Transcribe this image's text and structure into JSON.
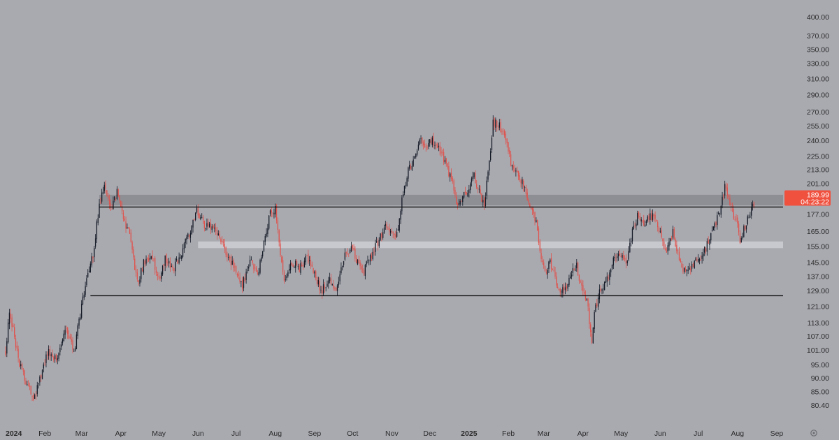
{
  "chart_data": {
    "type": "candlestick",
    "title": "",
    "xlabel": "",
    "ylabel": "",
    "y_scale": "log",
    "ylim": [
      76,
      410
    ],
    "grid": false,
    "y_ticks": [
      "400.00",
      "370.00",
      "350.00",
      "330.00",
      "310.00",
      "290.00",
      "270.00",
      "255.00",
      "240.00",
      "225.00",
      "213.00",
      "201.00",
      "189.00",
      "177.00",
      "165.00",
      "155.00",
      "145.00",
      "137.00",
      "129.00",
      "121.00",
      "113.00",
      "107.00",
      "101.00",
      "95.00",
      "90.00",
      "85.00",
      "80.40"
    ],
    "x_ticks": [
      {
        "label": "2024",
        "bold": true
      },
      {
        "label": "Feb",
        "bold": false
      },
      {
        "label": "Mar",
        "bold": false
      },
      {
        "label": "Apr",
        "bold": false
      },
      {
        "label": "May",
        "bold": false
      },
      {
        "label": "Jun",
        "bold": false
      },
      {
        "label": "Jul",
        "bold": false
      },
      {
        "label": "Aug",
        "bold": false
      },
      {
        "label": "Sep",
        "bold": false
      },
      {
        "label": "Oct",
        "bold": false
      },
      {
        "label": "Nov",
        "bold": false
      },
      {
        "label": "Dec",
        "bold": false
      },
      {
        "label": "2025",
        "bold": true
      },
      {
        "label": "Feb",
        "bold": false
      },
      {
        "label": "Mar",
        "bold": false
      },
      {
        "label": "Apr",
        "bold": false
      },
      {
        "label": "May",
        "bold": false
      },
      {
        "label": "Jun",
        "bold": false
      },
      {
        "label": "Jul",
        "bold": false
      },
      {
        "label": "Aug",
        "bold": false
      },
      {
        "label": "Sep",
        "bold": false
      }
    ],
    "price_anchors": [
      [
        "2024-01-01",
        100
      ],
      [
        "2024-01-04",
        120
      ],
      [
        "2024-01-12",
        95
      ],
      [
        "2024-01-23",
        82
      ],
      [
        "2024-02-03",
        100
      ],
      [
        "2024-02-10",
        98
      ],
      [
        "2024-02-18",
        110
      ],
      [
        "2024-02-24",
        100
      ],
      [
        "2024-03-02",
        125
      ],
      [
        "2024-03-10",
        150
      ],
      [
        "2024-03-15",
        185
      ],
      [
        "2024-03-19",
        200
      ],
      [
        "2024-03-24",
        180
      ],
      [
        "2024-03-29",
        195
      ],
      [
        "2024-04-03",
        175
      ],
      [
        "2024-04-09",
        160
      ],
      [
        "2024-04-14",
        133
      ],
      [
        "2024-04-19",
        145
      ],
      [
        "2024-04-25",
        150
      ],
      [
        "2024-05-01",
        135
      ],
      [
        "2024-05-06",
        148
      ],
      [
        "2024-05-12",
        140
      ],
      [
        "2024-05-19",
        152
      ],
      [
        "2024-05-26",
        165
      ],
      [
        "2024-05-31",
        180
      ],
      [
        "2024-06-06",
        170
      ],
      [
        "2024-06-12",
        168
      ],
      [
        "2024-06-18",
        160
      ],
      [
        "2024-06-25",
        148
      ],
      [
        "2024-07-01",
        140
      ],
      [
        "2024-07-06",
        132
      ],
      [
        "2024-07-12",
        146
      ],
      [
        "2024-07-18",
        138
      ],
      [
        "2024-07-23",
        158
      ],
      [
        "2024-07-28",
        178
      ],
      [
        "2024-08-01",
        182
      ],
      [
        "2024-08-05",
        150
      ],
      [
        "2024-08-08",
        133
      ],
      [
        "2024-08-14",
        145
      ],
      [
        "2024-08-20",
        142
      ],
      [
        "2024-08-26",
        148
      ],
      [
        "2024-09-01",
        140
      ],
      [
        "2024-09-06",
        128
      ],
      [
        "2024-09-12",
        136
      ],
      [
        "2024-09-18",
        130
      ],
      [
        "2024-09-24",
        148
      ],
      [
        "2024-09-30",
        155
      ],
      [
        "2024-10-05",
        145
      ],
      [
        "2024-10-10",
        140
      ],
      [
        "2024-10-16",
        150
      ],
      [
        "2024-10-22",
        160
      ],
      [
        "2024-10-28",
        170
      ],
      [
        "2024-11-01",
        165
      ],
      [
        "2024-11-05",
        163
      ],
      [
        "2024-11-09",
        188
      ],
      [
        "2024-11-14",
        213
      ],
      [
        "2024-11-19",
        222
      ],
      [
        "2024-11-23",
        245
      ],
      [
        "2024-11-28",
        235
      ],
      [
        "2024-12-03",
        240
      ],
      [
        "2024-12-08",
        232
      ],
      [
        "2024-12-14",
        218
      ],
      [
        "2024-12-19",
        200
      ],
      [
        "2024-12-23",
        182
      ],
      [
        "2024-12-27",
        190
      ],
      [
        "2024-12-31",
        195
      ],
      [
        "2025-01-04",
        210
      ],
      [
        "2025-01-07",
        200
      ],
      [
        "2025-01-13",
        185
      ],
      [
        "2025-01-16",
        210
      ],
      [
        "2025-01-20",
        260
      ],
      [
        "2025-01-25",
        255
      ],
      [
        "2025-01-30",
        240
      ],
      [
        "2025-02-04",
        215
      ],
      [
        "2025-02-10",
        205
      ],
      [
        "2025-02-14",
        198
      ],
      [
        "2025-02-19",
        178
      ],
      [
        "2025-02-23",
        174
      ],
      [
        "2025-02-26",
        150
      ],
      [
        "2025-03-02",
        140
      ],
      [
        "2025-03-06",
        146
      ],
      [
        "2025-03-11",
        133
      ],
      [
        "2025-03-17",
        128
      ],
      [
        "2025-03-22",
        138
      ],
      [
        "2025-03-27",
        143
      ],
      [
        "2025-03-31",
        130
      ],
      [
        "2025-04-04",
        125
      ],
      [
        "2025-04-08",
        103
      ],
      [
        "2025-04-10",
        118
      ],
      [
        "2025-04-14",
        128
      ],
      [
        "2025-04-20",
        135
      ],
      [
        "2025-04-26",
        148
      ],
      [
        "2025-05-01",
        150
      ],
      [
        "2025-05-06",
        146
      ],
      [
        "2025-05-10",
        165
      ],
      [
        "2025-05-15",
        178
      ],
      [
        "2025-05-19",
        170
      ],
      [
        "2025-05-23",
        176
      ],
      [
        "2025-05-28",
        175
      ],
      [
        "2025-06-02",
        160
      ],
      [
        "2025-06-06",
        152
      ],
      [
        "2025-06-11",
        165
      ],
      [
        "2025-06-16",
        148
      ],
      [
        "2025-06-20",
        140
      ],
      [
        "2025-06-25",
        142
      ],
      [
        "2025-06-30",
        148
      ],
      [
        "2025-07-05",
        150
      ],
      [
        "2025-07-10",
        160
      ],
      [
        "2025-07-15",
        170
      ],
      [
        "2025-07-20",
        188
      ],
      [
        "2025-07-22",
        200
      ],
      [
        "2025-07-26",
        185
      ],
      [
        "2025-07-31",
        172
      ],
      [
        "2025-08-03",
        160
      ],
      [
        "2025-08-07",
        168
      ],
      [
        "2025-08-11",
        178
      ],
      [
        "2025-08-14",
        186
      ]
    ],
    "volatility": 0.035,
    "candle_colors": {
      "up": "#141a26",
      "down": "#e0524c"
    },
    "support_resistance": [
      {
        "price": 182.5,
        "start": "2024-03-15",
        "end": "2025-09-06",
        "color": "#101010"
      },
      {
        "price": 126.5,
        "start": "2024-03-08",
        "end": "2025-09-06",
        "color": "#101010"
      }
    ],
    "zones": [
      {
        "low": 183.8,
        "high": 192.0,
        "start": "2024-03-15",
        "end": "2025-09-06",
        "color": "#8e8f95"
      },
      {
        "low": 154.0,
        "high": 158.3,
        "start": "2024-06-01",
        "end": "2025-09-06",
        "color": "#c8c9ce"
      }
    ],
    "price_label": {
      "value": "189.99",
      "countdown": "04:23:22",
      "color": "#f0503e"
    }
  }
}
